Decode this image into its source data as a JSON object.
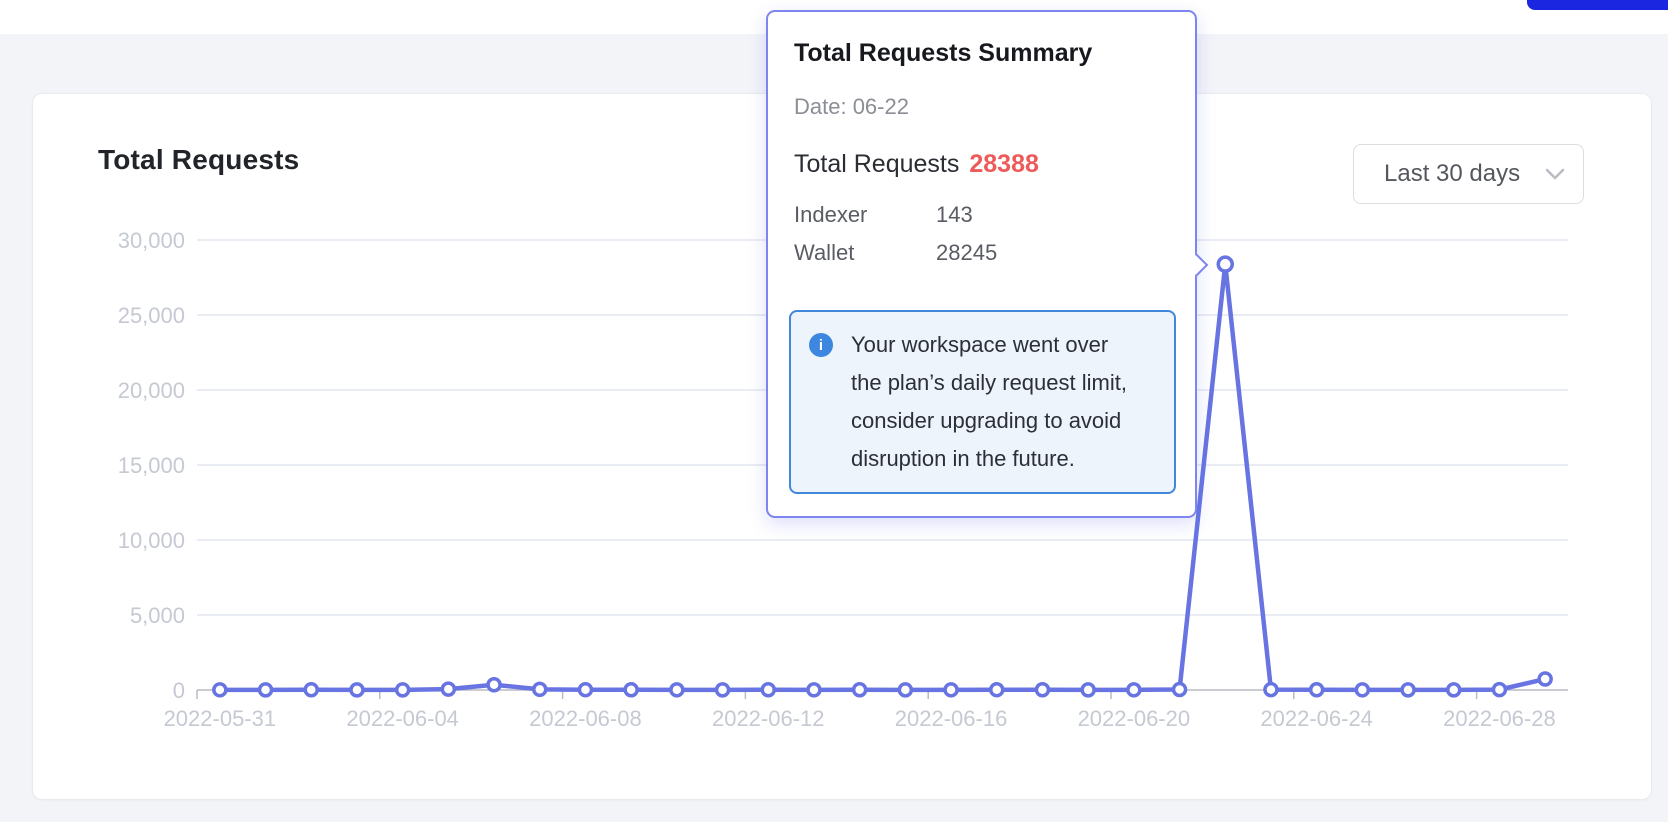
{
  "top_bar": {
    "primary_button": {
      "label": "",
      "color": "#1b26e0"
    }
  },
  "card": {
    "title": "Total Requests",
    "range_selector": {
      "value": "Last 30 days"
    }
  },
  "tooltip": {
    "title": "Total Requests Summary",
    "date_label": "Date: 06-22",
    "total_label": "Total Requests",
    "total_value": "28388",
    "rows": [
      {
        "label": "Indexer",
        "value": "143"
      },
      {
        "label": "Wallet",
        "value": "28245"
      }
    ],
    "alert_lines": [
      "Your workspace went over",
      "the plan’s daily request limit,",
      "consider upgrading to avoid",
      "disruption in the future."
    ]
  },
  "chart_data": {
    "type": "line",
    "title": "Total Requests",
    "series_name": "Total Requests",
    "x": [
      "2022-05-31",
      "2022-06-01",
      "2022-06-02",
      "2022-06-03",
      "2022-06-04",
      "2022-06-05",
      "2022-06-06",
      "2022-06-07",
      "2022-06-08",
      "2022-06-09",
      "2022-06-10",
      "2022-06-11",
      "2022-06-12",
      "2022-06-13",
      "2022-06-14",
      "2022-06-15",
      "2022-06-16",
      "2022-06-17",
      "2022-06-18",
      "2022-06-19",
      "2022-06-20",
      "2022-06-21",
      "2022-06-22",
      "2022-06-23",
      "2022-06-24",
      "2022-06-25",
      "2022-06-26",
      "2022-06-27",
      "2022-06-28",
      "2022-06-29"
    ],
    "values": [
      12,
      8,
      15,
      10,
      9,
      60,
      350,
      45,
      20,
      15,
      12,
      10,
      14,
      12,
      15,
      10,
      12,
      20,
      15,
      10,
      12,
      30,
      28388,
      25,
      15,
      12,
      10,
      8,
      25,
      733
    ],
    "x_label_every": 4,
    "y_ticks": [
      0,
      5000,
      10000,
      15000,
      20000,
      25000,
      30000
    ],
    "y_tick_labels": [
      "0",
      "5,000",
      "10,000",
      "15,000",
      "20,000",
      "25,000",
      "30,000"
    ],
    "ylim": [
      0,
      30000
    ],
    "grid": true,
    "legend": "none",
    "highlight_index": 22,
    "highlight": {
      "date": "06-22",
      "total": 28388,
      "indexer": 143,
      "wallet": 28245
    },
    "colors": {
      "line": "#6774e2",
      "marker_fill": "#ffffff",
      "grid": "#e3e6f1",
      "axis_line": "#b9bcc3",
      "axis_label": "#c5c9d2"
    }
  }
}
